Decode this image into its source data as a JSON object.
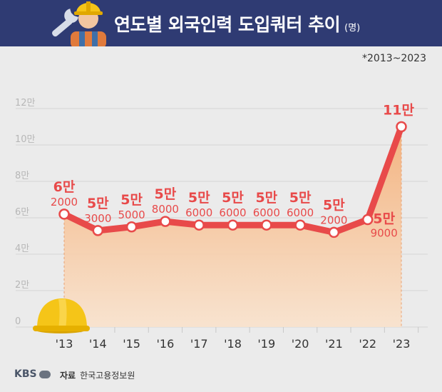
{
  "header": {
    "title": "연도별 외국인력 도입쿼터 추이",
    "unit": "(명)"
  },
  "range_note": "*2013~2023",
  "footer": {
    "logo": "KBS",
    "source_label": "자료",
    "source": "한국고용정보원"
  },
  "colors": {
    "header_bg": "#2f3b73",
    "line": "#e84a4a",
    "area_top": "#f4b07a",
    "area_bottom": "#f9e2cc",
    "background": "#ebebeb"
  },
  "icons": [
    "wrench-icon",
    "worker-icon",
    "hardhat-icon"
  ],
  "chart_data": {
    "type": "area",
    "x": [
      "'13",
      "'14",
      "'15",
      "'16",
      "'17",
      "'18",
      "'19",
      "'20",
      "'21",
      "'22",
      "'23"
    ],
    "values": [
      62000,
      53000,
      55000,
      58000,
      56000,
      56000,
      56000,
      56000,
      52000,
      59000,
      110000
    ],
    "data_labels": [
      {
        "top": "6만",
        "bottom": "2000"
      },
      {
        "top": "5만",
        "bottom": "3000"
      },
      {
        "top": "5만",
        "bottom": "5000"
      },
      {
        "top": "5만",
        "bottom": "8000"
      },
      {
        "top": "5만",
        "bottom": "6000"
      },
      {
        "top": "5만",
        "bottom": "6000"
      },
      {
        "top": "5만",
        "bottom": "6000"
      },
      {
        "top": "5만",
        "bottom": "6000"
      },
      {
        "top": "5만",
        "bottom": "2000"
      },
      {
        "top": "5만",
        "bottom": "9000"
      },
      {
        "top": "11만",
        "bottom": ""
      }
    ],
    "yticks": [
      "0",
      "2만",
      "4만",
      "6만",
      "8만",
      "10만",
      "12만"
    ],
    "ylim": [
      0,
      120000
    ],
    "grid": true
  }
}
